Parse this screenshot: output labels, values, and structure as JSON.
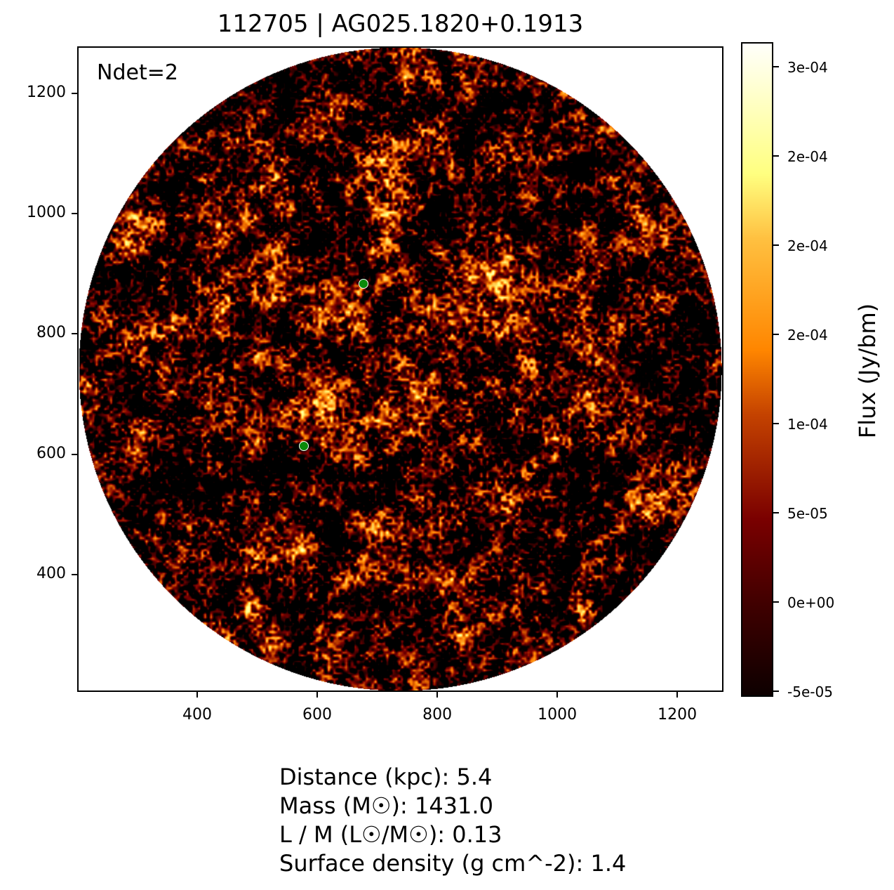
{
  "chart_data": {
    "type": "heatmap",
    "title": "112705 | AG025.1820+0.1913",
    "annotation": "Ndet=2",
    "xlim": [
      200,
      1277
    ],
    "ylim": [
      205,
      1278
    ],
    "x_ticks": [
      400,
      600,
      800,
      1000,
      1200
    ],
    "y_ticks": [
      400,
      600,
      800,
      1000,
      1200
    ],
    "colormap": "afmhot",
    "colorbar": {
      "label": "Flux (Jy/bm)",
      "range": [
        -5.24e-05,
        0.000313
      ],
      "ticks": [
        {
          "value": -5e-05,
          "label": "-5e-05"
        },
        {
          "value": 0,
          "label": "0e+00"
        },
        {
          "value": 5e-05,
          "label": "5e-05"
        },
        {
          "value": 0.0001,
          "label": "1e-04"
        },
        {
          "value": 0.00015,
          "label": "2e-04"
        },
        {
          "value": 0.0002,
          "label": "2e-04"
        },
        {
          "value": 0.00025,
          "label": "2e-04"
        },
        {
          "value": 0.0003,
          "label": "3e-04"
        }
      ]
    },
    "detections": {
      "color": "#0a8a0a",
      "points": [
        {
          "x": 677,
          "y": 883
        },
        {
          "x": 578,
          "y": 614
        }
      ]
    },
    "grid": false
  },
  "info_lines": [
    "Distance (kpc): 5.4",
    "Mass (M☉): 1431.0",
    "L / M (L☉/M☉): 0.13",
    "Surface density (g cm^-2): 1.4"
  ]
}
